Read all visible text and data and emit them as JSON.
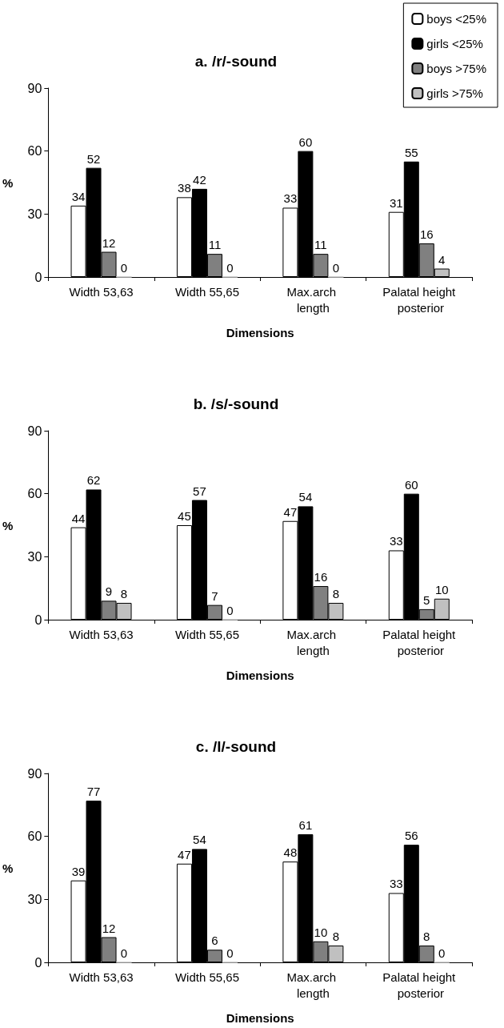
{
  "chart_data": [
    {
      "type": "bar",
      "title": "a. /r/-sound",
      "xlabel": "Dimensions",
      "ylabel": "%",
      "categories": [
        "Width 53,63",
        "Width 55,65",
        "Max.arch length",
        "Palatal height posterior"
      ],
      "ylim": [
        0,
        90
      ],
      "yticks": [
        0,
        30,
        60,
        90
      ],
      "grid": false,
      "data_labels": true,
      "legend": "top right",
      "series": [
        {
          "name": "boys <25%",
          "color": "#ffffff",
          "values": [
            34,
            38,
            33,
            31
          ]
        },
        {
          "name": "girls <25%",
          "color": "#000000",
          "values": [
            52,
            42,
            60,
            55
          ]
        },
        {
          "name": "boys >75%",
          "color": "#808080",
          "values": [
            12,
            11,
            11,
            16
          ]
        },
        {
          "name": "girls >75%",
          "color": "#c0c0c0",
          "values": [
            0,
            0,
            0,
            4
          ]
        }
      ]
    },
    {
      "type": "bar",
      "title": "b. /s/-sound",
      "xlabel": "Dimensions",
      "ylabel": "%",
      "categories": [
        "Width 53,63",
        "Width 55,65",
        "Max.arch length",
        "Palatal height posterior"
      ],
      "ylim": [
        0,
        90
      ],
      "yticks": [
        0,
        30,
        60,
        90
      ],
      "grid": false,
      "data_labels": true,
      "legend": false,
      "series": [
        {
          "color": "#ffffff",
          "values": [
            44,
            45,
            47,
            33
          ]
        },
        {
          "color": "#000000",
          "values": [
            62,
            57,
            54,
            60
          ]
        },
        {
          "color": "#808080",
          "values": [
            9,
            7,
            16,
            5
          ]
        },
        {
          "color": "#c0c0c0",
          "values": [
            8,
            0,
            8,
            10
          ]
        }
      ]
    },
    {
      "type": "bar",
      "title": "c. /l/-sound",
      "xlabel": "Dimensions",
      "ylabel": "%",
      "categories": [
        "Width 53,63",
        "Width 55,65",
        "Max.arch length",
        "Palatal height posterior"
      ],
      "ylim": [
        0,
        90
      ],
      "yticks": [
        0,
        30,
        60,
        90
      ],
      "grid": false,
      "data_labels": true,
      "legend": false,
      "series": [
        {
          "color": "#ffffff",
          "values": [
            39,
            47,
            48,
            33
          ]
        },
        {
          "color": "#000000",
          "values": [
            77,
            54,
            61,
            56
          ]
        },
        {
          "color": "#808080",
          "values": [
            12,
            6,
            10,
            8
          ]
        },
        {
          "color": "#c0c0c0",
          "values": [
            0,
            0,
            8,
            0
          ]
        }
      ]
    }
  ]
}
